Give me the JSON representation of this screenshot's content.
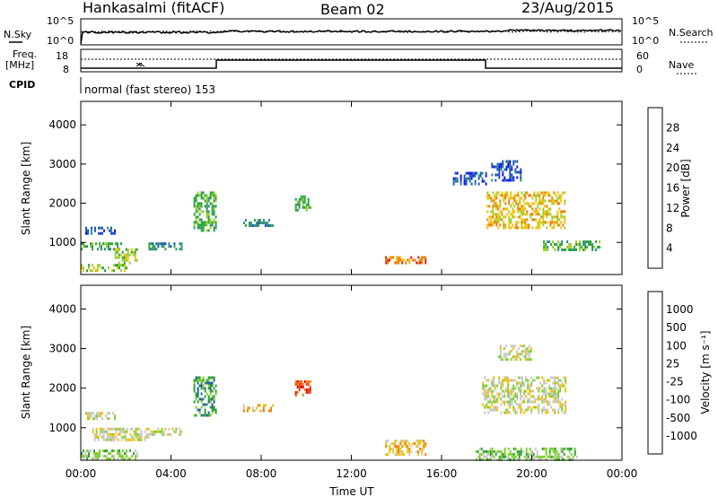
{
  "header": {
    "station": "Hankasalmi (fitACF)",
    "beam": "Beam 02",
    "date": "23/Aug/2015"
  },
  "top_panel": {
    "left_label": "N.Sky",
    "right_label": "N.Search",
    "left_ticks": [
      "10^5",
      "10^0"
    ],
    "right_ticks": [
      "10^5",
      "10^0"
    ]
  },
  "freq_panel": {
    "left_label_1": "Freq.",
    "left_label_2": "[MHz]",
    "left_ticks": [
      "18",
      "8"
    ],
    "right_ticks": [
      "60",
      "0"
    ],
    "right_label": "Nave"
  },
  "cpid": {
    "label": "CPID",
    "mode": "normal (fast stereo) 153"
  },
  "colors": {
    "power_scale": [
      "#1010f0",
      "#2050c8",
      "#2f8f7a",
      "#2aa33a",
      "#9bd02a",
      "#f0c000",
      "#f07a00",
      "#e02010"
    ],
    "velocity_scale": [
      "#e00000",
      "#f04000",
      "#f08000",
      "#f0c000",
      "#c8c8c8",
      "#7fd030",
      "#30a030",
      "#2060a0",
      "#2040e0"
    ]
  },
  "chart_data": [
    {
      "type": "heatmap",
      "panel": "power",
      "ylabel": "Slant Range [km]",
      "xlabel": "Time UT",
      "x_ticks": [
        "00:00",
        "04:00",
        "08:00",
        "12:00",
        "16:00",
        "20:00",
        "00:00"
      ],
      "y_ticks": [
        "1000",
        "2000",
        "3000",
        "4000"
      ],
      "ylim": [
        180,
        4600
      ],
      "colorbar": {
        "label": "Power [dB]",
        "ticks": [
          "4",
          "8",
          "12",
          "16",
          "20",
          "24",
          "28"
        ]
      },
      "regions": [
        {
          "t0": 0.0,
          "t1": 1.8,
          "r0": 850,
          "r1": 1000,
          "level": 3
        },
        {
          "t0": 0.2,
          "t1": 1.5,
          "r0": 1200,
          "r1": 1400,
          "level": 1
        },
        {
          "t0": 0.0,
          "t1": 2.0,
          "r0": 250,
          "r1": 450,
          "level": 4
        },
        {
          "t0": 1.5,
          "t1": 2.5,
          "r0": 500,
          "r1": 850,
          "level": 4
        },
        {
          "t0": 3.0,
          "t1": 4.5,
          "r0": 800,
          "r1": 1000,
          "level": 2
        },
        {
          "t0": 5.0,
          "t1": 6.0,
          "r0": 1300,
          "r1": 2300,
          "level": 3
        },
        {
          "t0": 7.2,
          "t1": 8.5,
          "r0": 1400,
          "r1": 1600,
          "level": 2
        },
        {
          "t0": 9.5,
          "t1": 10.2,
          "r0": 1800,
          "r1": 2200,
          "level": 3
        },
        {
          "t0": 13.5,
          "t1": 15.3,
          "r0": 450,
          "r1": 650,
          "level": 6
        },
        {
          "t0": 18.0,
          "t1": 21.5,
          "r0": 1400,
          "r1": 2300,
          "level": 5
        },
        {
          "t0": 18.2,
          "t1": 19.5,
          "r0": 2600,
          "r1": 3100,
          "level": 1
        },
        {
          "t0": 20.5,
          "t1": 23.0,
          "r0": 800,
          "r1": 1050,
          "level": 3
        },
        {
          "t0": 16.5,
          "t1": 18.0,
          "r0": 2500,
          "r1": 2800,
          "level": 1
        }
      ]
    },
    {
      "type": "heatmap",
      "panel": "velocity",
      "ylabel": "Slant Range [km]",
      "xlabel": "Time UT",
      "x_ticks": [
        "00:00",
        "04:00",
        "08:00",
        "12:00",
        "16:00",
        "20:00",
        "00:00"
      ],
      "y_ticks": [
        "1000",
        "2000",
        "3000",
        "4000"
      ],
      "ylim": [
        180,
        4600
      ],
      "colorbar": {
        "label": "Velocity [m s⁻¹]",
        "ticks": [
          "1000",
          "500",
          "100",
          "25",
          "-25",
          "-100",
          "-500",
          "-1000"
        ]
      },
      "regions": [
        {
          "t0": 0.0,
          "t1": 2.5,
          "r0": 200,
          "r1": 450,
          "level": 5
        },
        {
          "t0": 0.5,
          "t1": 3.0,
          "r0": 700,
          "r1": 1000,
          "level": 4
        },
        {
          "t0": 0.2,
          "t1": 1.5,
          "r0": 1200,
          "r1": 1400,
          "level": 4
        },
        {
          "t0": 3.0,
          "t1": 4.5,
          "r0": 800,
          "r1": 1000,
          "level": 4
        },
        {
          "t0": 5.0,
          "t1": 6.0,
          "r0": 1300,
          "r1": 2300,
          "level": 6
        },
        {
          "t0": 7.2,
          "t1": 8.5,
          "r0": 1400,
          "r1": 1600,
          "level": 3
        },
        {
          "t0": 9.5,
          "t1": 10.2,
          "r0": 1800,
          "r1": 2200,
          "level": 1
        },
        {
          "t0": 13.5,
          "t1": 15.3,
          "r0": 350,
          "r1": 700,
          "level": 3
        },
        {
          "t0": 17.8,
          "t1": 21.5,
          "r0": 1400,
          "r1": 2300,
          "level": 4
        },
        {
          "t0": 18.5,
          "t1": 20.0,
          "r0": 2700,
          "r1": 3100,
          "level": 4
        },
        {
          "t0": 17.5,
          "t1": 22.0,
          "r0": 200,
          "r1": 500,
          "level": 5
        }
      ]
    }
  ]
}
